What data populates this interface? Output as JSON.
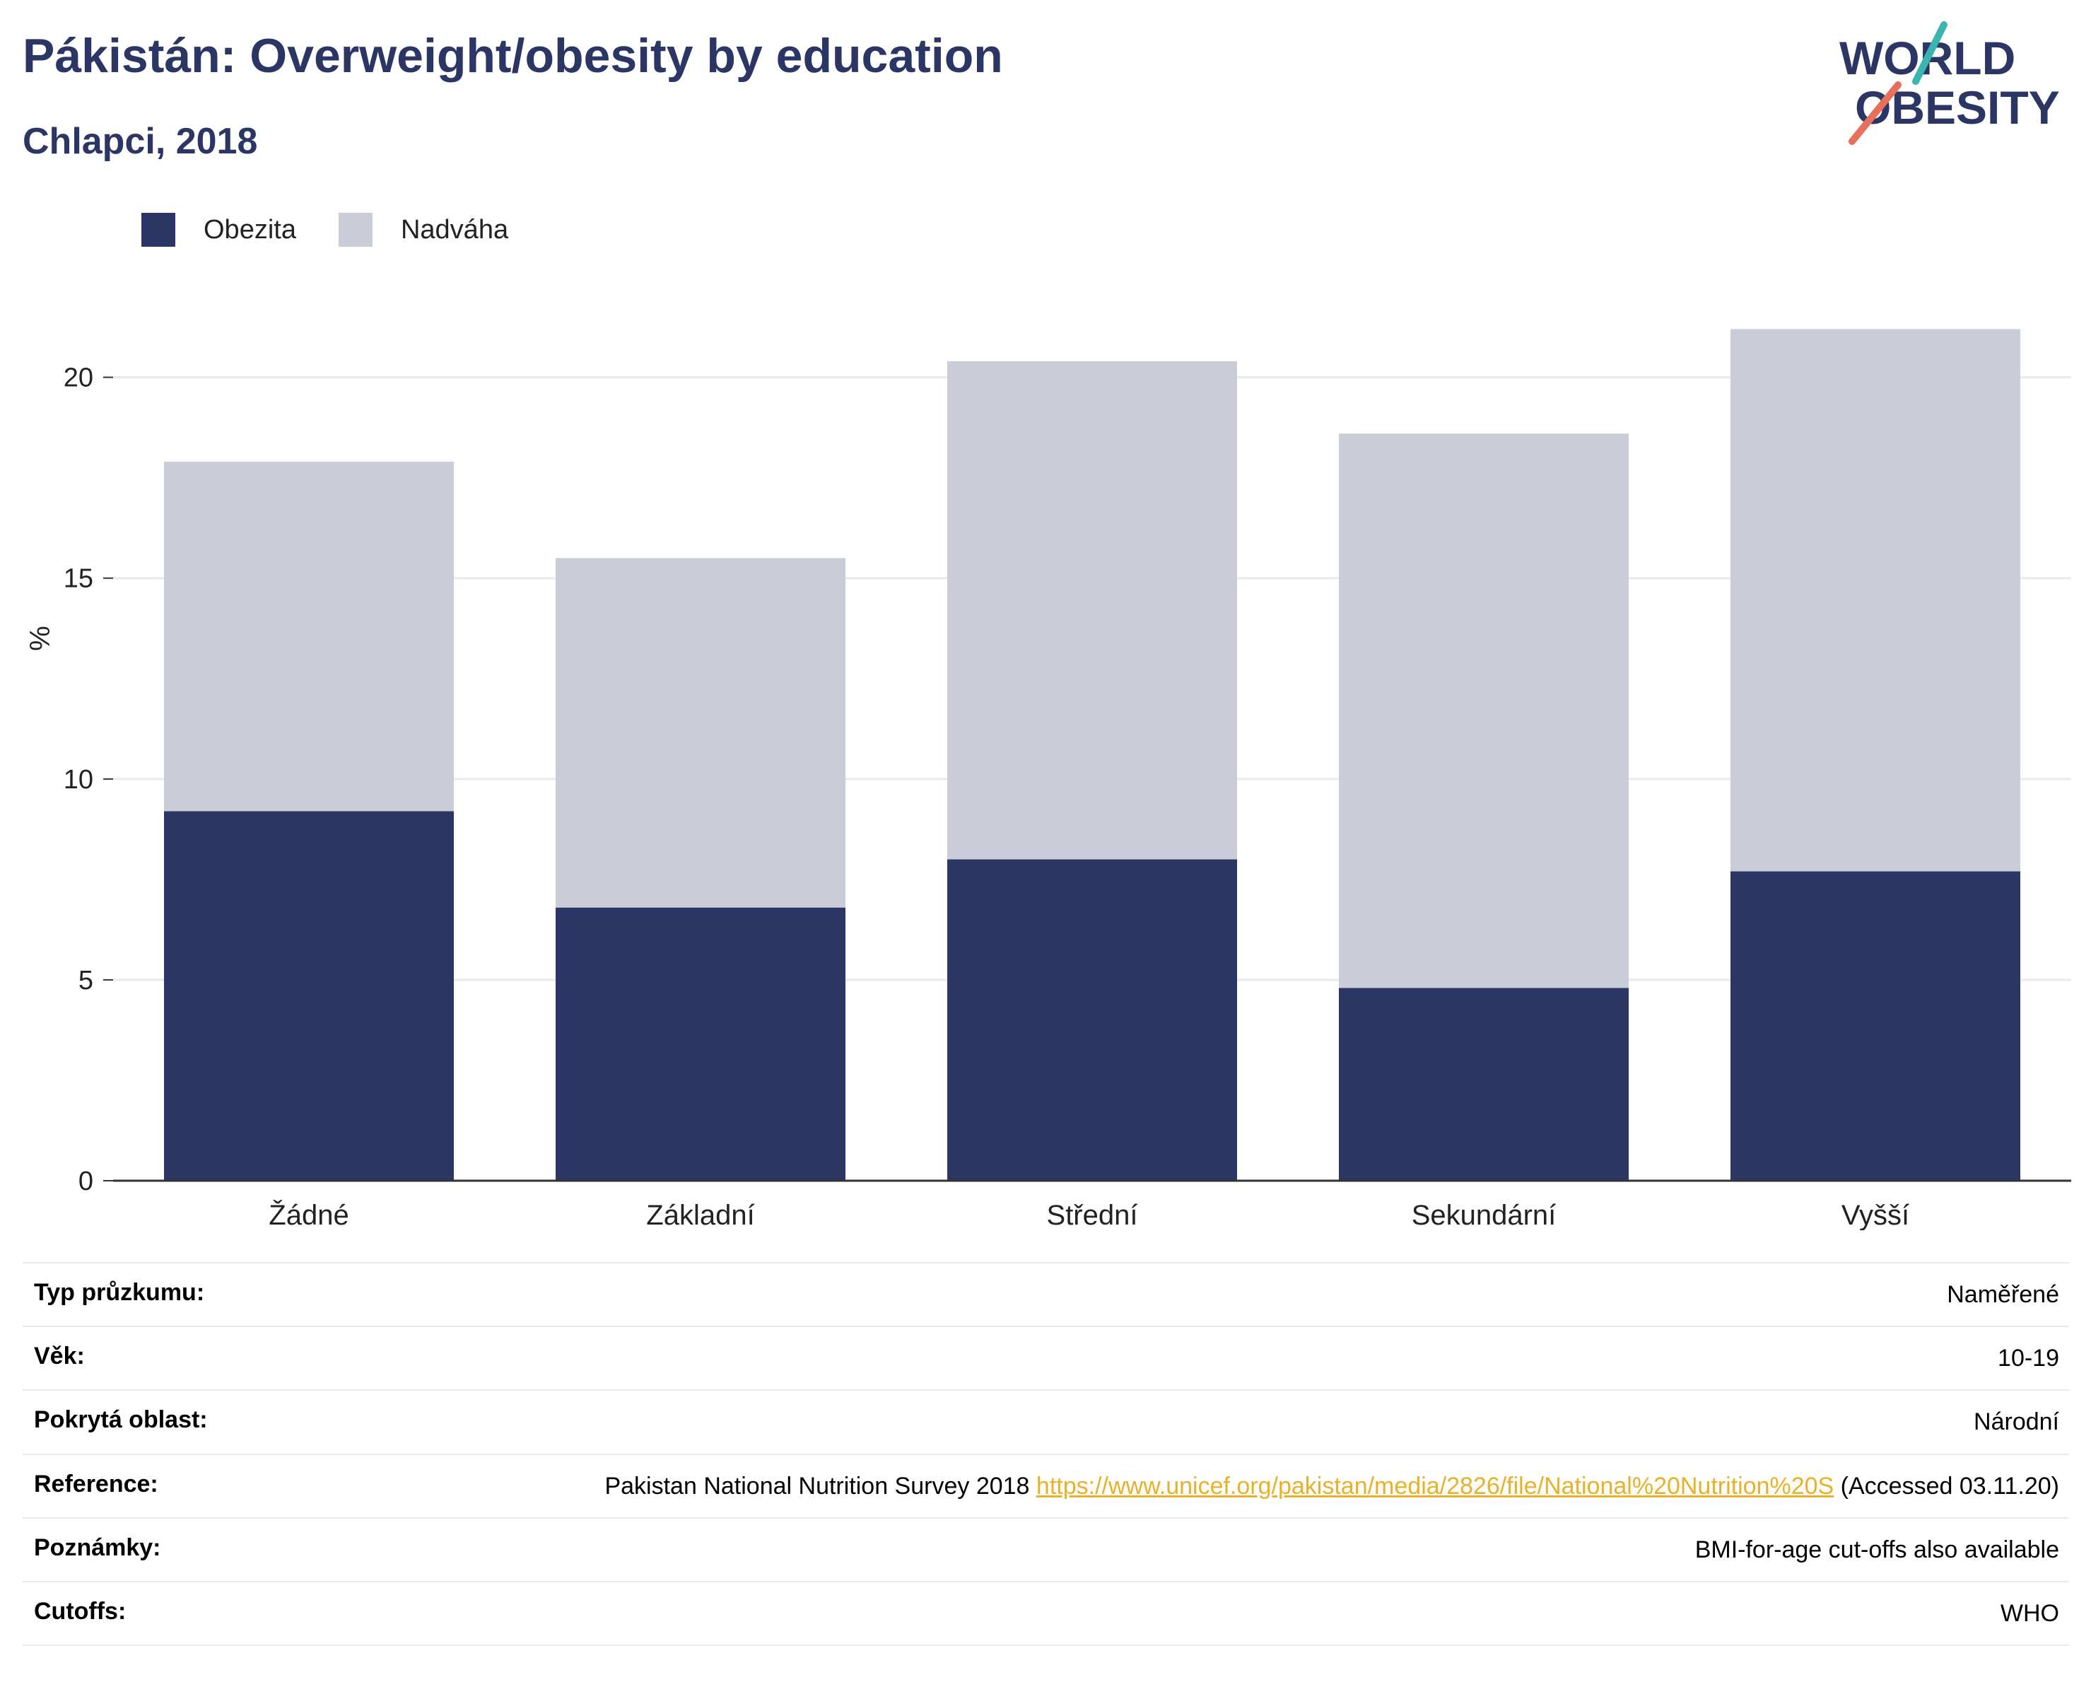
{
  "header": {
    "title": "Pákistán: Overweight/obesity by education",
    "subtitle": "Chlapci, 2018"
  },
  "logo": {
    "line1": "WORLD",
    "line2": "OBESITY"
  },
  "legend": {
    "items": [
      {
        "label": "Obezita",
        "color": "#2b3664"
      },
      {
        "label": "Nadváha",
        "color": "#cacdd8"
      }
    ]
  },
  "chart_data": {
    "type": "bar",
    "stacked": true,
    "categories": [
      "Žádné",
      "Základní",
      "Střední",
      "Sekundární",
      "Vyšší"
    ],
    "series": [
      {
        "name": "Obezita",
        "color": "#2b3664",
        "values": [
          9.2,
          6.8,
          8.0,
          4.8,
          7.7
        ]
      },
      {
        "name": "Nadváha",
        "color": "#cacdd8",
        "values": [
          8.7,
          8.7,
          12.4,
          13.8,
          13.5
        ]
      }
    ],
    "ylabel": "%",
    "ylim": [
      0,
      22
    ],
    "yticks": [
      0,
      5,
      10,
      15,
      20
    ],
    "grid": true,
    "legend_position": "top-left"
  },
  "meta": {
    "rows": [
      {
        "key": "Typ průzkumu:",
        "value": "Naměřené"
      },
      {
        "key": "Věk:",
        "value": "10-19"
      },
      {
        "key": "Pokrytá oblast:",
        "value": "Národní"
      },
      {
        "key": "Reference:",
        "value_before": "Pakistan National Nutrition Survey 2018",
        "link": "https://www.unicef.org/pakistan/media/2826/file/National%20Nutrition%20S",
        "value_after": "(Accessed 03.11.20)"
      },
      {
        "key": "Poznámky:",
        "value": "BMI-for-age cut-offs also available"
      },
      {
        "key": "Cutoffs:",
        "value": "WHO"
      }
    ]
  }
}
